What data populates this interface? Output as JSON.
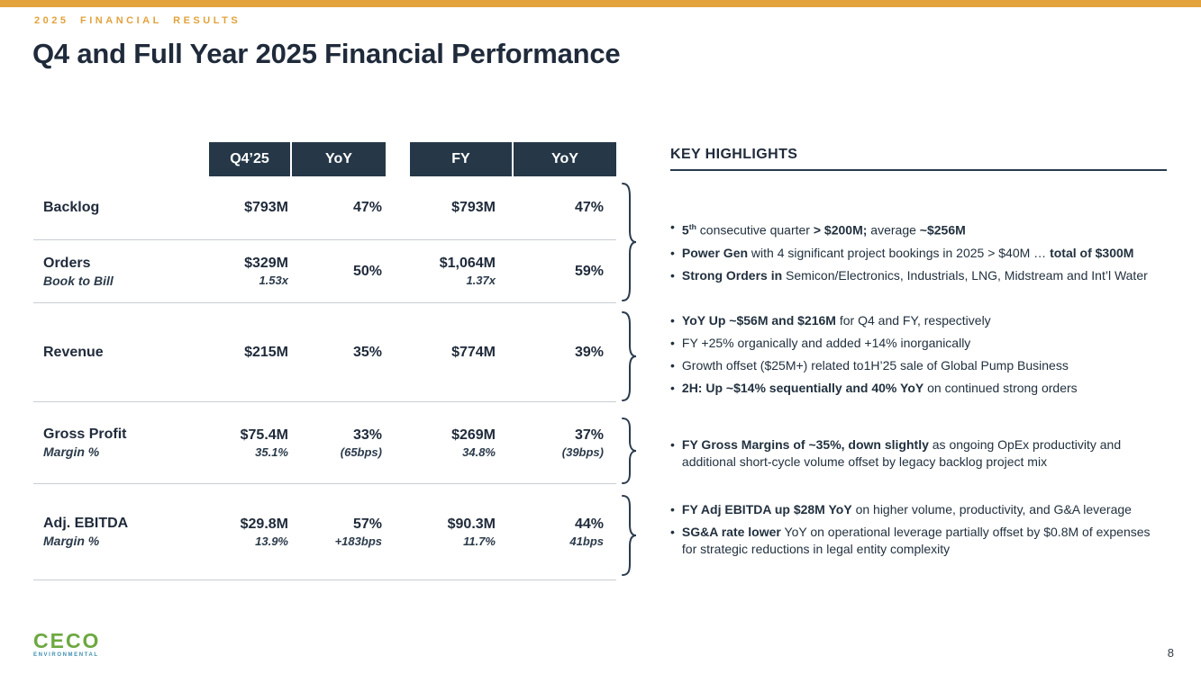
{
  "slide": {
    "eyebrow": "2025 FINANCIAL RESULTS",
    "title": "Q4 and Full Year 2025 Financial Performance",
    "page_number": "8",
    "logo": {
      "name": "CECO",
      "sub": "ENVIRONMENTAL"
    }
  },
  "colors": {
    "accent_orange": "#E2A23C",
    "navy_text": "#1F2A3A",
    "header_bg": "#263848",
    "divider_gray": "#C9CDD2",
    "logo_green": "#6CA83F"
  },
  "table": {
    "header_groups": [
      {
        "cols": [
          "Q4’25",
          "YoY"
        ]
      },
      {
        "cols": [
          "FY",
          "YoY"
        ]
      }
    ],
    "rows": [
      {
        "label": "Backlog",
        "sublabel": "",
        "cells": [
          {
            "value": "$793M",
            "sub": ""
          },
          {
            "value": "47%",
            "sub": ""
          },
          {
            "value": "$793M",
            "sub": ""
          },
          {
            "value": "47%",
            "sub": ""
          }
        ]
      },
      {
        "label": "Orders",
        "sublabel": "Book to Bill",
        "cells": [
          {
            "value": "$329M",
            "sub": "1.53x"
          },
          {
            "value": "50%",
            "sub": ""
          },
          {
            "value": "$1,064M",
            "sub": "1.37x"
          },
          {
            "value": "59%",
            "sub": ""
          }
        ]
      },
      {
        "label": "Revenue",
        "sublabel": "",
        "cells": [
          {
            "value": "$215M",
            "sub": ""
          },
          {
            "value": "35%",
            "sub": ""
          },
          {
            "value": "$774M",
            "sub": ""
          },
          {
            "value": "39%",
            "sub": ""
          }
        ]
      },
      {
        "label": "Gross Profit",
        "sublabel": "Margin %",
        "cells": [
          {
            "value": "$75.4M",
            "sub": "35.1%"
          },
          {
            "value": "33%",
            "sub": "(65bps)"
          },
          {
            "value": "$269M",
            "sub": "34.8%"
          },
          {
            "value": "37%",
            "sub": "(39bps)"
          }
        ]
      },
      {
        "label": "Adj. EBITDA",
        "sublabel": "Margin %",
        "cells": [
          {
            "value": "$29.8M",
            "sub": "13.9%"
          },
          {
            "value": "57%",
            "sub": "+183bps"
          },
          {
            "value": "$90.3M",
            "sub": "11.7%"
          },
          {
            "value": "44%",
            "sub": "41bps"
          }
        ]
      }
    ]
  },
  "highlights": {
    "title": "KEY HIGHLIGHTS",
    "groups": [
      {
        "bullets": [
          {
            "segments": [
              {
                "text": "5",
                "bold": true
              },
              {
                "text": "th",
                "bold": true,
                "sup": true
              },
              {
                "text": " consecutive quarter ",
                "bold": false
              },
              {
                "text": "> $200M;",
                "bold": true
              },
              {
                "text": " average ",
                "bold": false
              },
              {
                "text": "~$256M",
                "bold": true
              }
            ]
          },
          {
            "segments": [
              {
                "text": "Power Gen",
                "bold": true
              },
              {
                "text": " with 4 significant project bookings in 2025 > $40M … ",
                "bold": false
              },
              {
                "text": "total of $300M",
                "bold": true
              }
            ]
          },
          {
            "segments": [
              {
                "text": "Strong Orders in",
                "bold": true
              },
              {
                "text": " Semicon/Electronics, Industrials, LNG, Midstream and Int’l Water",
                "bold": false
              }
            ]
          }
        ]
      },
      {
        "bullets": [
          {
            "segments": [
              {
                "text": "YoY Up ~$56M and $216M",
                "bold": true
              },
              {
                "text": " for Q4 and FY, respectively",
                "bold": false
              }
            ]
          },
          {
            "segments": [
              {
                "text": "FY +25% organically and added +14% inorganically",
                "bold": false
              }
            ]
          },
          {
            "segments": [
              {
                "text": "Growth offset ($25M+) related to1H’25 sale of Global Pump Business",
                "bold": false
              }
            ]
          },
          {
            "segments": [
              {
                "text": "2H: Up ~$14% sequentially and 40% YoY",
                "bold": true
              },
              {
                "text": " on continued strong orders",
                "bold": false
              }
            ]
          }
        ]
      },
      {
        "bullets": [
          {
            "segments": [
              {
                "text": "FY Gross Margins of ~35%, down slightly",
                "bold": true
              },
              {
                "text": " as ongoing OpEx productivity and additional short-cycle volume offset by legacy backlog project mix",
                "bold": false
              }
            ]
          }
        ]
      },
      {
        "bullets": [
          {
            "segments": [
              {
                "text": "FY Adj EBITDA up $28M YoY",
                "bold": true
              },
              {
                "text": " on higher volume, productivity, and G&A leverage",
                "bold": false
              }
            ]
          },
          {
            "segments": [
              {
                "text": "SG&A rate lower",
                "bold": true
              },
              {
                "text": " YoY on operational leverage partially offset by $0.8M of expenses for strategic reductions in legal entity complexity",
                "bold": false
              }
            ]
          }
        ]
      }
    ]
  }
}
